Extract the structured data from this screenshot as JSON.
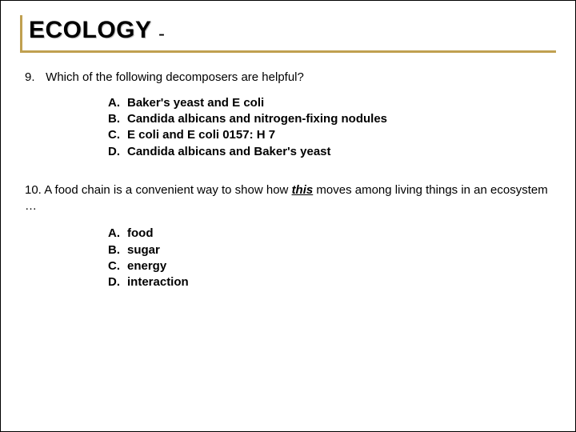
{
  "header": {
    "title": "ECOLOGY",
    "dash": "-"
  },
  "q9": {
    "number": "9.",
    "text": "Which of the following decomposers are helpful?",
    "options": [
      {
        "letter": "A.",
        "text": "Baker's yeast and E coli"
      },
      {
        "letter": "B.",
        "text": "Candida albicans and nitrogen-fixing nodules"
      },
      {
        "letter": "C.",
        "text": "E coli and E coli 0157: H 7"
      },
      {
        "letter": "D.",
        "text": "Candida albicans and Baker's yeast"
      }
    ]
  },
  "q10": {
    "number": "10.",
    "pre": "A food chain is a convenient way to show how ",
    "emph": "this",
    "post": " moves among living things in an ecosystem …",
    "options": [
      {
        "letter": "A.",
        "text": "food"
      },
      {
        "letter": "B.",
        "text": "sugar"
      },
      {
        "letter": "C.",
        "text": "energy"
      },
      {
        "letter": "D.",
        "text": "interaction"
      }
    ]
  }
}
